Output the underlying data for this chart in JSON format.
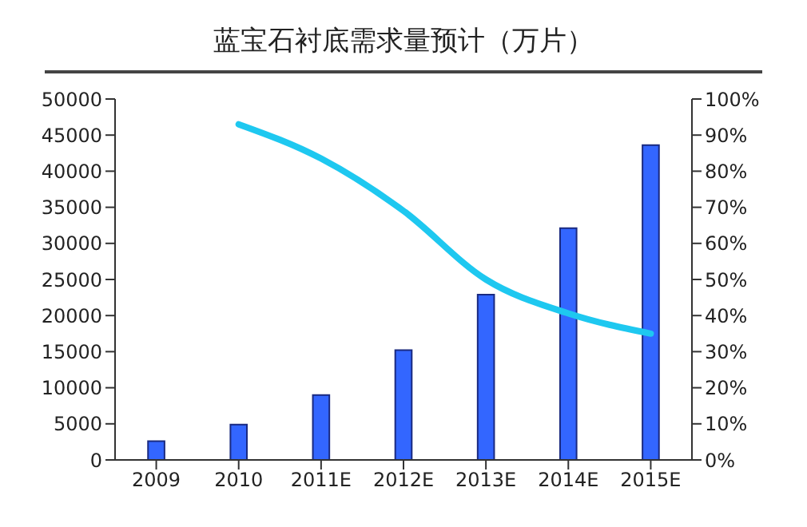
{
  "chart_data": {
    "type": "bar",
    "title": "蓝宝石衬底需求量预计（万片）",
    "categories": [
      "2009",
      "2010",
      "2011E",
      "2012E",
      "2013E",
      "2014E",
      "2015E"
    ],
    "series": [
      {
        "color": "#3366ff",
        "values": [
          2600,
          4900,
          9000,
          15200,
          22900,
          32100,
          43600
        ]
      },
      {
        "type": "line",
        "axis": "y2",
        "color": "#1ec8f0",
        "values": [
          null,
          93,
          83.5,
          69,
          50,
          40.6,
          35
        ]
      }
    ],
    "ylim": [
      0,
      50000
    ],
    "yticks": [
      0,
      5000,
      10000,
      15000,
      20000,
      25000,
      30000,
      35000,
      40000,
      45000,
      50000
    ],
    "y2lim": [
      0,
      100
    ],
    "y2ticks": [
      {
        "value": 0,
        "label": "0%"
      },
      {
        "value": 10,
        "label": "10%"
      },
      {
        "value": 20,
        "label": "20%"
      },
      {
        "value": 30,
        "label": "30%"
      },
      {
        "value": 40,
        "label": "40%"
      },
      {
        "value": 50,
        "label": "50%"
      },
      {
        "value": 60,
        "label": "60%"
      },
      {
        "value": 70,
        "label": "70%"
      },
      {
        "value": 80,
        "label": "80%"
      },
      {
        "value": 90,
        "label": "90%"
      },
      {
        "value": 100,
        "label": "100%"
      }
    ],
    "grid": false,
    "legend": false,
    "marker": "none"
  }
}
